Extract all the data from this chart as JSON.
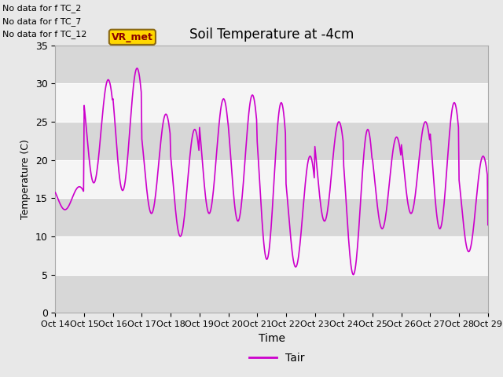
{
  "title": "Soil Temperature at -4cm",
  "xlabel": "Time",
  "ylabel": "Temperature (C)",
  "ylim": [
    0,
    35
  ],
  "line_color": "#CC00CC",
  "line_width": 1.2,
  "legend_label": "Tair",
  "bg_color": "#E8E8E8",
  "text_annotations": [
    "No data for f TC_2",
    "No data for f TC_7",
    "No data for f TC_12"
  ],
  "vr_met_label": "VR_met",
  "xtick_labels": [
    "Oct 14",
    "Oct 15",
    "Oct 16",
    "Oct 17",
    "Oct 18",
    "Oct 19",
    "Oct 20",
    "Oct 21",
    "Oct 22",
    "Oct 23",
    "Oct 24",
    "Oct 25",
    "Oct 26",
    "Oct 27",
    "Oct 28",
    "Oct 29"
  ],
  "ytick_values": [
    0,
    5,
    10,
    15,
    20,
    25,
    30,
    35
  ],
  "peak_temps": [
    16.5,
    30.5,
    32.0,
    26.0,
    24.0,
    28.0,
    28.5,
    27.5,
    20.5,
    25.0,
    24.0,
    23.0,
    25.0,
    27.5,
    20.5,
    11.5
  ],
  "trough_temps": [
    13.5,
    17.0,
    16.0,
    13.0,
    10.0,
    13.0,
    12.0,
    7.0,
    6.0,
    12.0,
    5.0,
    11.0,
    13.0,
    11.0,
    8.0,
    11.5
  ],
  "band_light": "#DCDCDC",
  "band_dark": "#C8C8C8"
}
